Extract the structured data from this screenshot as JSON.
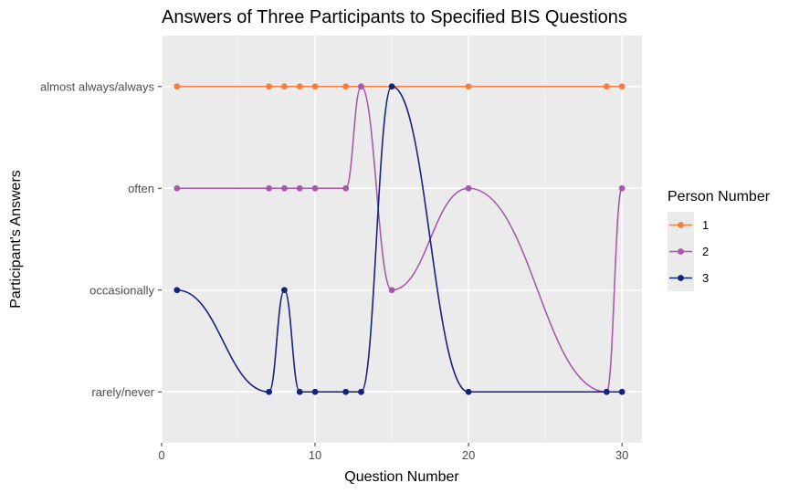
{
  "chart_data": {
    "type": "line",
    "title": "Answers of Three Participants to Specified BIS Questions",
    "xlabel": "Question Number",
    "ylabel": "Participant's Answers",
    "xlim": [
      0,
      31.3
    ],
    "ylim": [
      0.5,
      4.5
    ],
    "x_ticks": [
      0,
      10,
      20,
      30
    ],
    "x_minor_ticks": [
      5,
      15,
      25
    ],
    "y_categories": [
      "rarely/never",
      "occasionally",
      "often",
      "almost always/always"
    ],
    "grid": true,
    "legend": {
      "title": "Person Number",
      "position": "right"
    },
    "x": [
      1,
      7,
      8,
      9,
      10,
      12,
      13,
      15,
      20,
      29,
      30
    ],
    "series": [
      {
        "name": "1",
        "color": "#f47d3f",
        "values": [
          4,
          4,
          4,
          4,
          4,
          4,
          4,
          4,
          4,
          4,
          4
        ]
      },
      {
        "name": "2",
        "color": "#a85aa8",
        "values": [
          3,
          3,
          3,
          3,
          3,
          3,
          4,
          2,
          3,
          1,
          3
        ]
      },
      {
        "name": "3",
        "color": "#14247a",
        "values": [
          2,
          1,
          2,
          1,
          1,
          1,
          1,
          4,
          1,
          1,
          1
        ]
      }
    ]
  }
}
